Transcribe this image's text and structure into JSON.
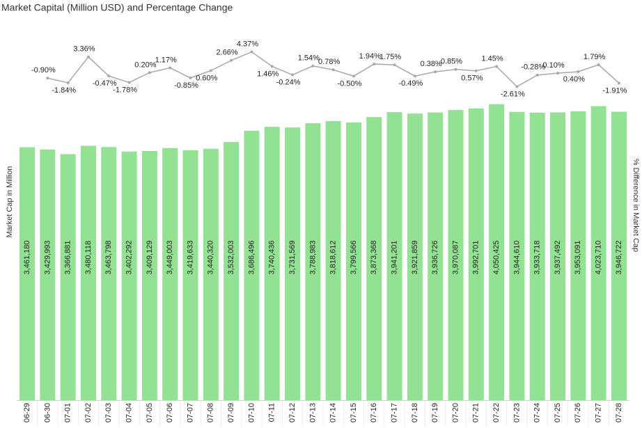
{
  "chart_data": {
    "type": "bar",
    "title": "Market Capital (Million USD) and Percentage Change",
    "ylabel": "Market Cap in Million",
    "y2label": "% Difference in Market Cap",
    "categories": [
      "06-29",
      "06-30",
      "07-01",
      "07-02",
      "07-03",
      "07-04",
      "07-05",
      "07-06",
      "07-07",
      "07-08",
      "07-09",
      "07-10",
      "07-11",
      "07-12",
      "07-13",
      "07-14",
      "07-15",
      "07-16",
      "07-17",
      "07-18",
      "07-19",
      "07-20",
      "07-21",
      "07-22",
      "07-23",
      "07-24",
      "07-25",
      "07-26",
      "07-27",
      "07-28"
    ],
    "ylim": [
      0,
      5190000
    ],
    "y2lim": [
      -65.6,
      10.6
    ],
    "series": [
      {
        "type": "bar",
        "color": "#93e193",
        "values": [
          3461180,
          3429993,
          3366881,
          3480118,
          3463798,
          3402292,
          3409129,
          3449003,
          3419633,
          3440320,
          3532003,
          3686496,
          3740436,
          3731569,
          3788983,
          3818612,
          3799566,
          3873368,
          3941201,
          3921859,
          3936726,
          3970087,
          3992701,
          4050425,
          3944610,
          3933718,
          3937492,
          3953091,
          4023710,
          3946722
        ],
        "value_labels": [
          "3,461,180",
          "3,429,993",
          "3,366,881",
          "3,480,118",
          "3,463,798",
          "3,402,292",
          "3,409,129",
          "3,449,003",
          "3,419,633",
          "3,440,320",
          "3,532,003",
          "3,686,496",
          "3,740,436",
          "3,731,569",
          "3,788,983",
          "3,818,612",
          "3,799,566",
          "3,873,368",
          "3,941,201",
          "3,921,859",
          "3,936,726",
          "3,970,087",
          "3,992,701",
          "4,050,425",
          "3,944,610",
          "3,933,718",
          "3,937,492",
          "3,953,091",
          "4,023,710",
          "3,946,722"
        ]
      },
      {
        "type": "line",
        "axis": "y2",
        "color": "#a8a8a8",
        "values": [
          null,
          -0.9,
          -1.84,
          3.36,
          -0.47,
          -1.78,
          0.2,
          1.17,
          -0.85,
          0.6,
          2.66,
          4.37,
          1.46,
          -0.24,
          1.54,
          0.78,
          -0.5,
          1.94,
          1.75,
          -0.49,
          0.38,
          0.85,
          0.57,
          1.45,
          -2.61,
          -0.28,
          0.1,
          0.4,
          1.79,
          -1.91
        ],
        "value_labels": [
          null,
          "-0.90%",
          "-1.84%",
          "3.36%",
          "-0.47%",
          "-1.78%",
          "0.20%",
          "1.17%",
          "-0.85%",
          "0.60%",
          "2.66%",
          "4.37%",
          "1.46%",
          "-0.24%",
          "1.54%",
          "0.78%",
          "-0.50%",
          "1.94%",
          "1.75%",
          "-0.49%",
          "0.38%",
          "0.85%",
          "0.57%",
          "1.45%",
          "-2.61%",
          "-0.28%",
          "0.10%",
          "0.40%",
          "1.79%",
          "-1.91%"
        ]
      }
    ]
  }
}
